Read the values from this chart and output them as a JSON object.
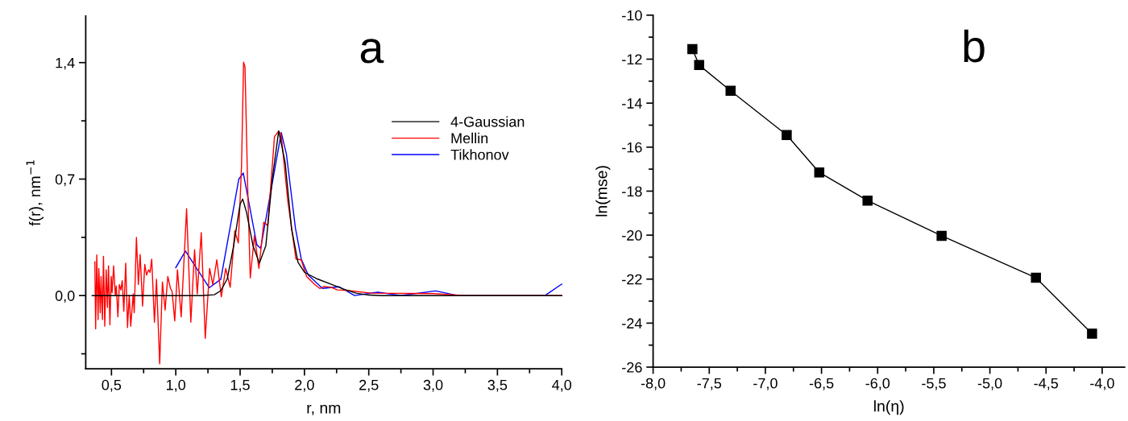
{
  "chart_data": [
    {
      "type": "line",
      "xlabel": "r, nm",
      "ylabel": "f(r), nm$^{−1}$",
      "annotations": [
        "a"
      ],
      "xlim": [
        0.3,
        4.0
      ],
      "ylim": [
        -0.44,
        1.68
      ],
      "xticks": [
        {
          "value": 0.5,
          "label": "0,5"
        },
        {
          "value": 0.75,
          "label": null
        },
        {
          "value": 1.0,
          "label": "1,0"
        },
        {
          "value": 1.25,
          "label": null
        },
        {
          "value": 1.5,
          "label": "1,5"
        },
        {
          "value": 1.75,
          "label": null
        },
        {
          "value": 2.0,
          "label": "2,0"
        },
        {
          "value": 2.25,
          "label": null
        },
        {
          "value": 2.5,
          "label": "2,5"
        },
        {
          "value": 2.75,
          "label": null
        },
        {
          "value": 3.0,
          "label": "3,0"
        },
        {
          "value": 3.25,
          "label": null
        },
        {
          "value": 3.5,
          "label": "3,5"
        },
        {
          "value": 3.75,
          "label": null
        },
        {
          "value": 4.0,
          "label": "4,0"
        }
      ],
      "yticks": [
        {
          "value": -0.35,
          "label": null
        },
        {
          "value": 0.0,
          "label": "0,0"
        },
        {
          "value": 0.35,
          "label": null
        },
        {
          "value": 0.7,
          "label": "0,7"
        },
        {
          "value": 1.05,
          "label": null
        },
        {
          "value": 1.4,
          "label": "1,4"
        }
      ],
      "legend": "right",
      "marker": "none",
      "line_style": "solid",
      "series": [
        {
          "name": "4-Gaussian",
          "color": "#000000",
          "x": [
            0.35,
            1.2,
            1.3,
            1.35,
            1.4,
            1.45,
            1.5,
            1.52,
            1.55,
            1.6,
            1.65,
            1.7,
            1.75,
            1.8,
            1.85,
            1.9,
            1.95,
            2.0,
            2.1,
            2.2,
            2.3,
            2.4,
            2.5,
            2.6,
            4.0
          ],
          "values": [
            0,
            0,
            0.005,
            0.03,
            0.1,
            0.3,
            0.55,
            0.58,
            0.5,
            0.3,
            0.195,
            0.3,
            0.7,
            0.99,
            0.8,
            0.4,
            0.2,
            0.14,
            0.1,
            0.07,
            0.04,
            0.015,
            0.003,
            0,
            0
          ]
        },
        {
          "name": "Mellin",
          "color": "#ff0000",
          "x": [
            0.371,
            0.377,
            0.386,
            0.396,
            0.402,
            0.413,
            0.419,
            0.43,
            0.438,
            0.448,
            0.459,
            0.469,
            0.477,
            0.488,
            0.498,
            0.505,
            0.517,
            0.53,
            0.538,
            0.55,
            0.561,
            0.573,
            0.584,
            0.596,
            0.611,
            0.625,
            0.638,
            0.65,
            0.669,
            0.677,
            0.694,
            0.709,
            0.723,
            0.742,
            0.759,
            0.773,
            0.788,
            0.8,
            0.813,
            0.834,
            0.85,
            0.875,
            0.896,
            0.917,
            0.938,
            0.959,
            0.971,
            0.992,
            1.013,
            1.042,
            1.084,
            1.117,
            1.146,
            1.167,
            1.198,
            1.229,
            1.263,
            1.288,
            1.319,
            1.354,
            1.388,
            1.423,
            1.459,
            1.486,
            1.511,
            1.527,
            1.538,
            1.559,
            1.579,
            1.611,
            1.646,
            1.684,
            1.715,
            1.767,
            1.798,
            1.819,
            1.871,
            1.934,
            1.975,
            2.017,
            2.08,
            2.121,
            2.152,
            2.205,
            2.257,
            2.33,
            2.517,
            3.0,
            3.25,
            4.0
          ],
          "values": [
            0.203,
            -0.2,
            0.244,
            -0.144,
            0.163,
            -0.103,
            0.115,
            -0.144,
            0.236,
            -0.184,
            0.155,
            -0.071,
            0.179,
            -0.176,
            0.115,
            0.018,
            0.179,
            0.002,
            0.058,
            -0.128,
            0.066,
            0.034,
            0.09,
            -0.095,
            0.195,
            -0.192,
            0.002,
            -0.184,
            0.01,
            -0.103,
            0.349,
            0.066,
            0.247,
            -0.063,
            0.187,
            0.123,
            0.155,
            0.139,
            0.219,
            -0.16,
            0.098,
            -0.41,
            0.082,
            -0.087,
            0.115,
            0.042,
            0.026,
            -0.152,
            0.155,
            -0.128,
            0.522,
            -0.16,
            0.276,
            0.01,
            0.378,
            -0.257,
            0.163,
            0.066,
            0.215,
            -0.007,
            0.163,
            0.05,
            0.389,
            0.316,
            0.777,
            1.403,
            1.374,
            0.647,
            0.106,
            0.36,
            0.163,
            0.441,
            0.421,
            0.954,
            0.987,
            0.97,
            0.567,
            0.22,
            0.215,
            0.115,
            0.066,
            0.042,
            0.055,
            0.05,
            0.034,
            0.031,
            0.015,
            0.012,
            0.0,
            0.0
          ]
        },
        {
          "name": "Tikhonov",
          "color": "#0000ff",
          "x": [
            1.0,
            1.075,
            1.26,
            1.35,
            1.49,
            1.525,
            1.63,
            1.66,
            1.82,
            1.86,
            1.93,
            1.975,
            2.03,
            2.14,
            2.27,
            2.39,
            2.57,
            2.75,
            3.02,
            3.19,
            3.87,
            4.0
          ],
          "values": [
            0.168,
            0.268,
            0.047,
            0.098,
            0.7,
            0.736,
            0.305,
            0.284,
            0.98,
            0.85,
            0.405,
            0.22,
            0.123,
            0.043,
            0.053,
            0.0,
            0.02,
            0.0,
            0.028,
            0.0,
            0.0,
            0.069
          ]
        }
      ]
    },
    {
      "type": "line",
      "xlabel": "ln(η)",
      "ylabel": "ln(mse)",
      "annotations": [
        "b"
      ],
      "xlim": [
        -8.0,
        -3.8
      ],
      "ylim": [
        -26,
        -10
      ],
      "xticks": [
        {
          "value": -8.0,
          "label": "-8,0"
        },
        {
          "value": -7.75,
          "label": null
        },
        {
          "value": -7.5,
          "label": "-7,5"
        },
        {
          "value": -7.25,
          "label": null
        },
        {
          "value": -7.0,
          "label": "-7,0"
        },
        {
          "value": -6.75,
          "label": null
        },
        {
          "value": -6.5,
          "label": "-6,5"
        },
        {
          "value": -6.25,
          "label": null
        },
        {
          "value": -6.0,
          "label": "-6,0"
        },
        {
          "value": -5.75,
          "label": null
        },
        {
          "value": -5.5,
          "label": "-5,5"
        },
        {
          "value": -5.25,
          "label": null
        },
        {
          "value": -5.0,
          "label": "-5,0"
        },
        {
          "value": -4.75,
          "label": null
        },
        {
          "value": -4.5,
          "label": "-4,5"
        },
        {
          "value": -4.25,
          "label": null
        },
        {
          "value": -4.0,
          "label": "-4,0"
        }
      ],
      "yticks": [
        {
          "value": -26,
          "label": "-26"
        },
        {
          "value": -25,
          "label": null
        },
        {
          "value": -24,
          "label": "-24"
        },
        {
          "value": -23,
          "label": null
        },
        {
          "value": -22,
          "label": "-22"
        },
        {
          "value": -21,
          "label": null
        },
        {
          "value": -20,
          "label": "-20"
        },
        {
          "value": -19,
          "label": null
        },
        {
          "value": -18,
          "label": "-18"
        },
        {
          "value": -17,
          "label": null
        },
        {
          "value": -16,
          "label": "-16"
        },
        {
          "value": -15,
          "label": null
        },
        {
          "value": -14,
          "label": "-14"
        },
        {
          "value": -13,
          "label": null
        },
        {
          "value": -12,
          "label": "-12"
        },
        {
          "value": -11,
          "label": null
        },
        {
          "value": -10,
          "label": "-10"
        }
      ],
      "marker": "square",
      "line_style": "solid",
      "series": [
        {
          "color": "#000000",
          "x": [
            -7.65,
            -7.59,
            -7.31,
            -6.81,
            -6.52,
            -6.09,
            -5.43,
            -4.59,
            -4.09
          ],
          "values": [
            -11.54,
            -12.27,
            -13.44,
            -15.45,
            -17.15,
            -18.43,
            -20.03,
            -21.94,
            -24.48
          ]
        }
      ]
    }
  ]
}
